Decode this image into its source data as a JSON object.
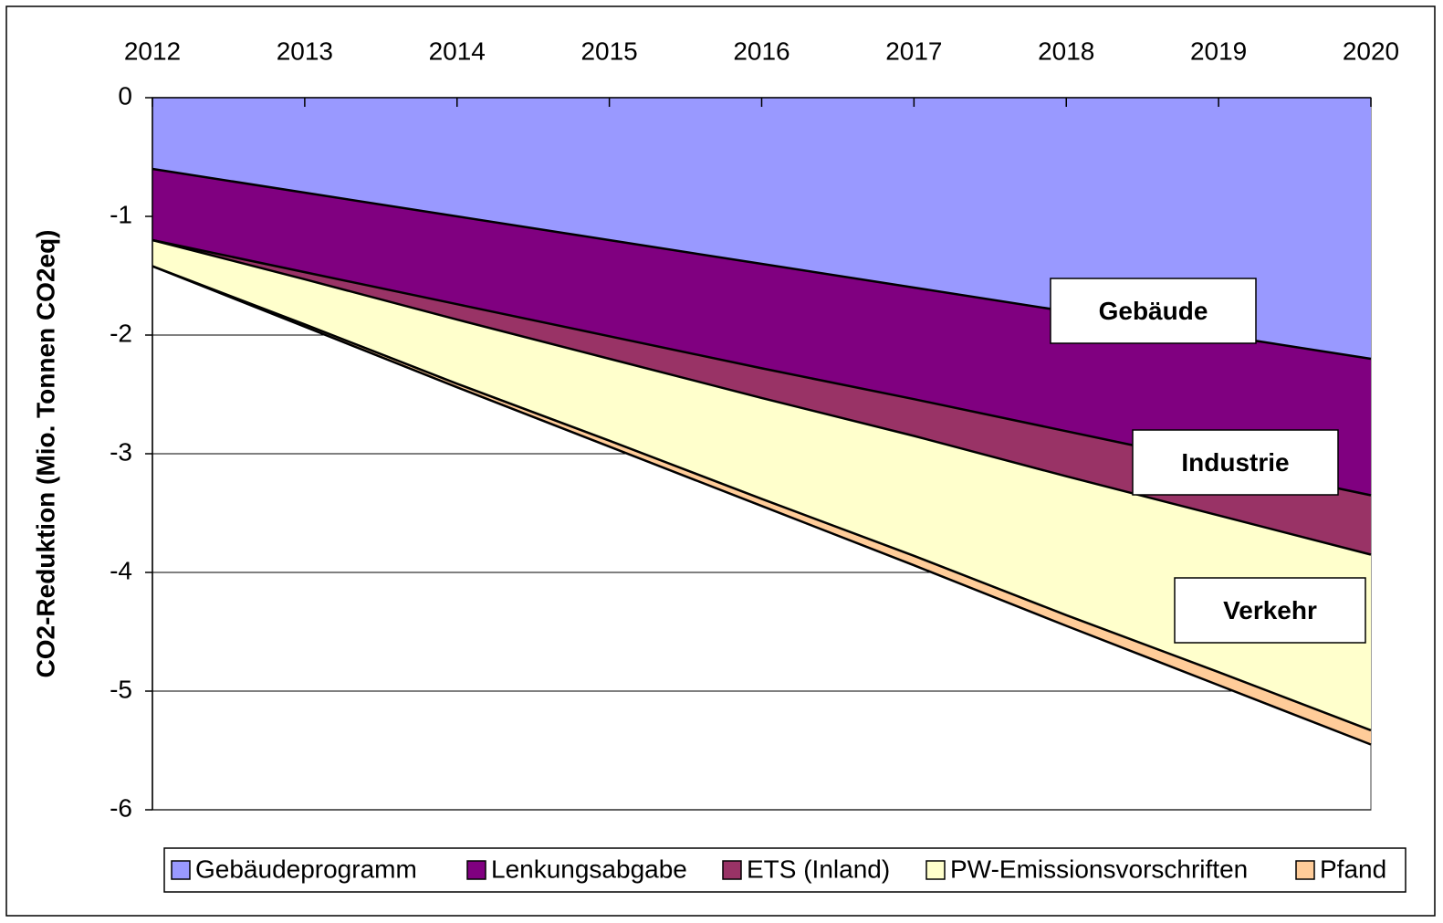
{
  "chart_data": {
    "type": "area",
    "stacked": true,
    "y_label": "CO2-Reduktion (Mio. Tonnen CO2eq)",
    "categories": [
      "2012",
      "2013",
      "2014",
      "2015",
      "2016",
      "2017",
      "2018",
      "2019",
      "2020"
    ],
    "series": [
      {
        "name": "Gebäudeprogramm",
        "color": "#9999ff",
        "values": [
          -0.6,
          -0.8,
          -1.0,
          -1.2,
          -1.4,
          -1.6,
          -1.8,
          -2.0,
          -2.2
        ]
      },
      {
        "name": "Lenkungsabgabe",
        "color": "#800080",
        "values": [
          -0.6,
          -0.67,
          -0.74,
          -0.81,
          -0.88,
          -0.94,
          -1.01,
          -1.08,
          -1.15
        ]
      },
      {
        "name": "ETS (Inland)",
        "color": "#993366",
        "values": [
          0,
          -0.06,
          -0.13,
          -0.19,
          -0.25,
          -0.31,
          -0.38,
          -0.44,
          -0.5
        ]
      },
      {
        "name": "PW-Emissionsvorschriften",
        "color": "#ffffcc",
        "values": [
          -0.22,
          -0.38,
          -0.54,
          -0.69,
          -0.85,
          -1.01,
          -1.17,
          -1.32,
          -1.48
        ]
      },
      {
        "name": "Pfand",
        "color": "#ffcc99",
        "values": [
          0,
          -0.02,
          -0.03,
          -0.05,
          -0.06,
          -0.08,
          -0.09,
          -0.11,
          -0.12
        ]
      }
    ],
    "annotations": [
      "Gebäude",
      "Industrie",
      "Verkehr"
    ],
    "ylim": [
      -6,
      0
    ],
    "yticks": [
      -6,
      -5,
      -4,
      -3,
      -2,
      -1,
      0
    ],
    "grid": true,
    "legend": "bottom"
  }
}
